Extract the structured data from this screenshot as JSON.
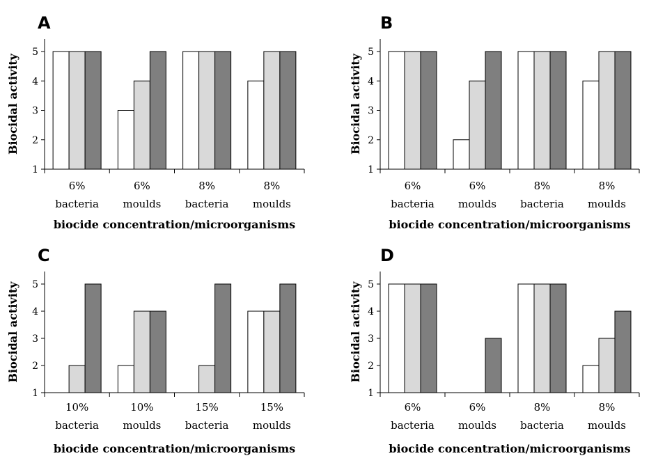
{
  "colors": {
    "series1": "#ffffff",
    "series2": "#d9d9d9",
    "series3": "#7f7f7f"
  },
  "chart_data": [
    {
      "type": "bar",
      "panel": "A",
      "ylabel": "Biocidal activity",
      "xlabel": "biocide concentration/microorganisms",
      "ylim": [
        1,
        5
      ],
      "yticks": [
        "1",
        "2",
        "3",
        "4",
        "5"
      ],
      "categories": [
        [
          "6%",
          "bacteria"
        ],
        [
          "6%",
          "moulds"
        ],
        [
          "8%",
          "bacteria"
        ],
        [
          "8%",
          "moulds"
        ]
      ],
      "series": [
        {
          "values": [
            5,
            3,
            5,
            4
          ]
        },
        {
          "values": [
            5,
            4,
            5,
            5
          ]
        },
        {
          "values": [
            5,
            5,
            5,
            5
          ]
        }
      ]
    },
    {
      "type": "bar",
      "panel": "B",
      "ylabel": "Biocidal activity",
      "xlabel": "biocide concentration/microorganisms",
      "ylim": [
        1,
        5
      ],
      "yticks": [
        "1",
        "2",
        "3",
        "4",
        "5"
      ],
      "categories": [
        [
          "6%",
          "bacteria"
        ],
        [
          "6%",
          "moulds"
        ],
        [
          "8%",
          "bacteria"
        ],
        [
          "8%",
          "moulds"
        ]
      ],
      "series": [
        {
          "values": [
            5,
            2,
            5,
            4
          ]
        },
        {
          "values": [
            5,
            4,
            5,
            5
          ]
        },
        {
          "values": [
            5,
            5,
            5,
            5
          ]
        }
      ]
    },
    {
      "type": "bar",
      "panel": "C",
      "ylabel": "Biocidal activity",
      "xlabel": "biocide concentration/microorganisms",
      "ylim": [
        1,
        5
      ],
      "yticks": [
        "1",
        "2",
        "3",
        "4",
        "5"
      ],
      "categories": [
        [
          "10%",
          "bacteria"
        ],
        [
          "10%",
          "moulds"
        ],
        [
          "15%",
          "bacteria"
        ],
        [
          "15%",
          "moulds"
        ]
      ],
      "series": [
        {
          "values": [
            1,
            2,
            1,
            4
          ]
        },
        {
          "values": [
            2,
            4,
            2,
            4
          ]
        },
        {
          "values": [
            5,
            4,
            5,
            5
          ]
        }
      ]
    },
    {
      "type": "bar",
      "panel": "D",
      "ylabel": "Biocidal activity",
      "xlabel": "biocide concentration/microorganisms",
      "ylim": [
        1,
        5
      ],
      "yticks": [
        "1",
        "2",
        "3",
        "4",
        "5"
      ],
      "categories": [
        [
          "6%",
          "bacteria"
        ],
        [
          "6%",
          "moulds"
        ],
        [
          "8%",
          "bacteria"
        ],
        [
          "8%",
          "moulds"
        ]
      ],
      "series": [
        {
          "values": [
            5,
            1,
            5,
            2
          ]
        },
        {
          "values": [
            5,
            1,
            5,
            3
          ]
        },
        {
          "values": [
            5,
            3,
            5,
            4
          ]
        }
      ]
    }
  ]
}
